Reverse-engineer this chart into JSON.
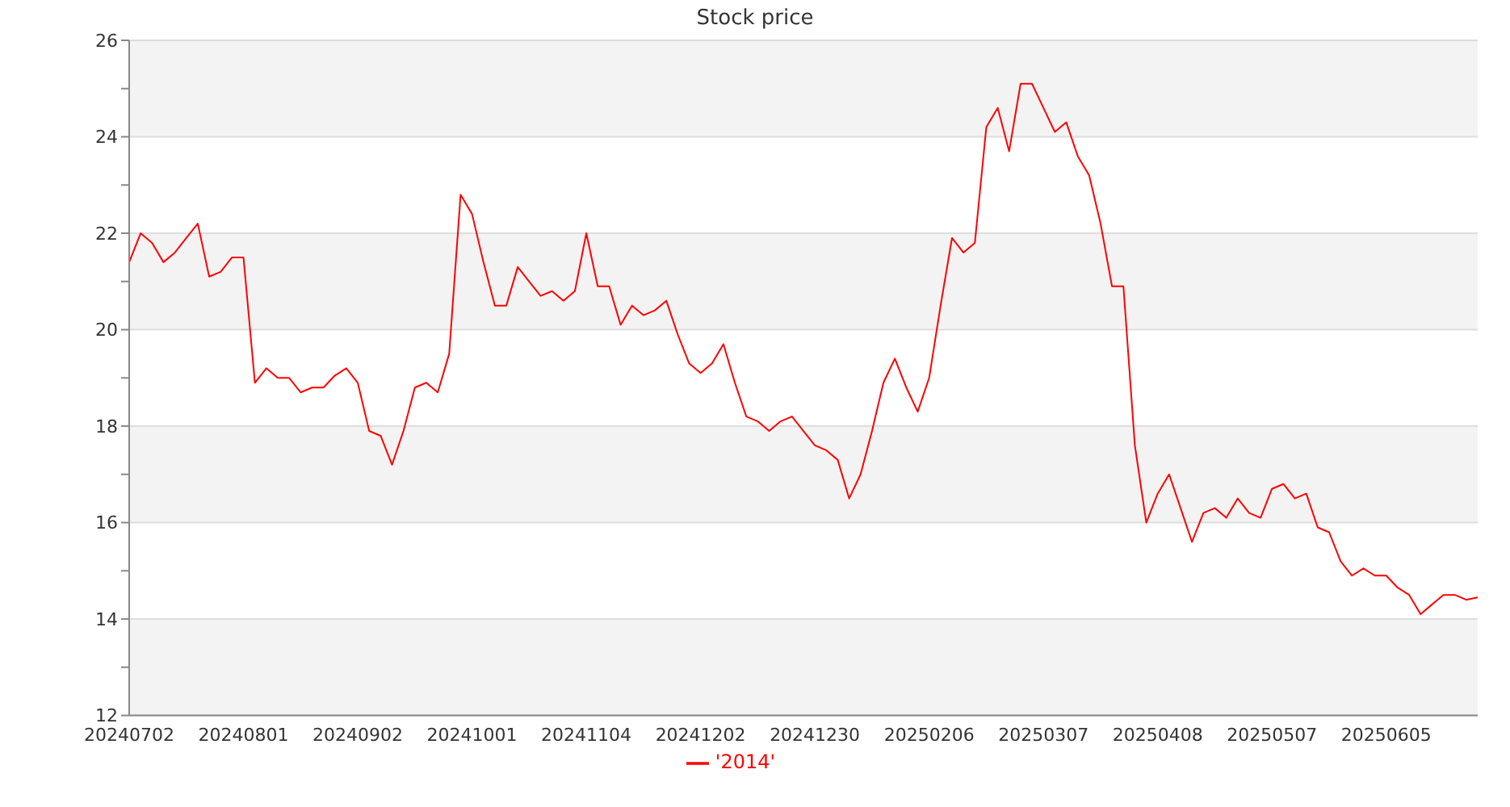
{
  "chart_data": {
    "type": "line",
    "title": "Stock price",
    "categories": [
      "20240702",
      null,
      null,
      null,
      null,
      null,
      null,
      null,
      null,
      null,
      "20240801",
      null,
      null,
      null,
      null,
      null,
      null,
      null,
      null,
      null,
      "20240902",
      null,
      null,
      null,
      null,
      null,
      null,
      null,
      null,
      null,
      "20241001",
      null,
      null,
      null,
      null,
      null,
      null,
      null,
      null,
      null,
      "20241104",
      null,
      null,
      null,
      null,
      null,
      null,
      null,
      null,
      null,
      "20241202",
      null,
      null,
      null,
      null,
      null,
      null,
      null,
      null,
      null,
      "20241230",
      null,
      null,
      null,
      null,
      null,
      null,
      null,
      null,
      null,
      "20250206",
      null,
      null,
      null,
      null,
      null,
      null,
      null,
      null,
      null,
      "20250307",
      null,
      null,
      null,
      null,
      null,
      null,
      null,
      null,
      null,
      "20250408",
      null,
      null,
      null,
      null,
      null,
      null,
      null,
      null,
      null,
      "20250507",
      null,
      null,
      null,
      null,
      null,
      null,
      null,
      null,
      null,
      "20250605",
      null,
      null,
      null,
      null,
      null,
      null,
      null,
      null
    ],
    "series": [
      {
        "name": "'2014'",
        "color": "#ff0000",
        "values": [
          21.4,
          22.0,
          21.8,
          21.4,
          21.6,
          21.9,
          22.2,
          21.1,
          21.2,
          21.5,
          21.5,
          18.9,
          19.2,
          19.0,
          19.0,
          18.7,
          18.8,
          18.8,
          19.05,
          19.2,
          18.9,
          17.9,
          17.8,
          17.2,
          17.9,
          18.8,
          18.9,
          18.7,
          19.5,
          22.8,
          22.4,
          21.4,
          20.5,
          20.5,
          21.3,
          21.0,
          20.7,
          20.8,
          20.6,
          20.8,
          22.0,
          20.9,
          20.9,
          20.1,
          20.5,
          20.3,
          20.4,
          20.6,
          19.9,
          19.3,
          19.1,
          19.3,
          19.7,
          18.9,
          18.2,
          18.1,
          17.9,
          18.1,
          18.2,
          17.9,
          17.6,
          17.5,
          17.3,
          16.5,
          17.0,
          17.9,
          18.9,
          19.4,
          18.8,
          18.3,
          19.0,
          20.5,
          21.9,
          21.6,
          21.8,
          24.2,
          24.6,
          23.7,
          25.1,
          25.1,
          24.6,
          24.1,
          24.3,
          23.6,
          23.2,
          22.2,
          20.9,
          20.9,
          17.6,
          16.0,
          16.6,
          17.0,
          16.3,
          15.6,
          16.2,
          16.3,
          16.1,
          16.5,
          16.2,
          16.1,
          16.7,
          16.8,
          16.5,
          16.6,
          15.9,
          15.8,
          15.2,
          14.9,
          15.05,
          14.9,
          14.9,
          14.65,
          14.5,
          14.1,
          14.3,
          14.5,
          14.5,
          14.4,
          14.45
        ]
      }
    ],
    "ylim": [
      12,
      26
    ],
    "yticks": [
      12,
      {
        "value": 13,
        "label": null
      },
      14,
      {
        "value": 15,
        "label": null
      },
      16,
      {
        "value": 17,
        "label": null
      },
      18,
      {
        "value": 19,
        "label": null
      },
      20,
      {
        "value": 21,
        "label": null
      },
      22,
      {
        "value": 23,
        "label": null
      },
      24,
      {
        "value": 25,
        "label": null
      },
      26
    ],
    "grid": "y",
    "legend": "bottom",
    "marker": "none",
    "line_style": "solid"
  }
}
